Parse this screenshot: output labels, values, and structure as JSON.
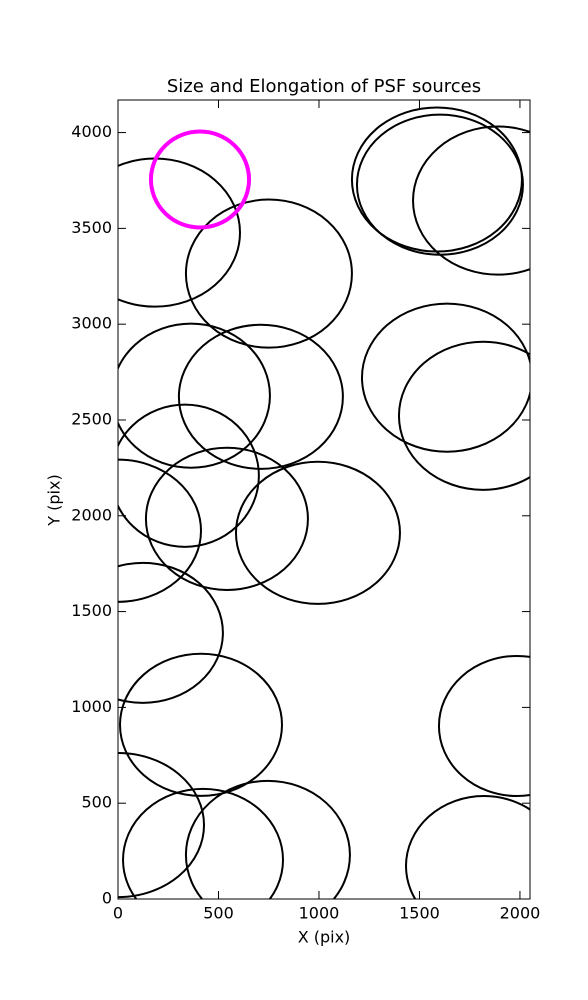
{
  "chart_data": {
    "type": "ellipse",
    "title": "Size and Elongation of PSF sources",
    "xlabel": "X (pix)",
    "ylabel": "Y (pix)",
    "xlim": [
      0,
      2050
    ],
    "ylim": [
      0,
      4170
    ],
    "xticks": [
      0,
      500,
      1000,
      1500,
      2000
    ],
    "yticks": [
      0,
      500,
      1000,
      1500,
      2000,
      2500,
      3000,
      3500,
      4000
    ],
    "ellipses": [
      {
        "x": 184,
        "y": 3478,
        "width": 846,
        "height": 773,
        "color": "#000000",
        "linewidth": 2
      },
      {
        "x": 751,
        "y": 3264,
        "width": 826,
        "height": 773,
        "color": "#000000",
        "linewidth": 2
      },
      {
        "x": 1587,
        "y": 3755,
        "width": 846,
        "height": 752,
        "color": "#000000",
        "linewidth": 2
      },
      {
        "x": 1602,
        "y": 3728,
        "width": 826,
        "height": 731,
        "color": "#000000",
        "linewidth": 2
      },
      {
        "x": 1891,
        "y": 3645,
        "width": 846,
        "height": 773,
        "color": "#000000",
        "linewidth": 2
      },
      {
        "x": 363,
        "y": 2627,
        "width": 786,
        "height": 752,
        "color": "#000000",
        "linewidth": 2
      },
      {
        "x": 711,
        "y": 2621,
        "width": 816,
        "height": 752,
        "color": "#000000",
        "linewidth": 2
      },
      {
        "x": 1637,
        "y": 2721,
        "width": 846,
        "height": 773,
        "color": "#000000",
        "linewidth": 2
      },
      {
        "x": 1816,
        "y": 2522,
        "width": 836,
        "height": 773,
        "color": "#000000",
        "linewidth": 2
      },
      {
        "x": 333,
        "y": 2209,
        "width": 736,
        "height": 742,
        "color": "#000000",
        "linewidth": 2
      },
      {
        "x": 542,
        "y": 1984,
        "width": 806,
        "height": 742,
        "color": "#000000",
        "linewidth": 2
      },
      {
        "x": 995,
        "y": 1911,
        "width": 816,
        "height": 742,
        "color": "#000000",
        "linewidth": 2
      },
      {
        "x": 0,
        "y": 1922,
        "width": 826,
        "height": 742,
        "color": "#000000",
        "linewidth": 2
      },
      {
        "x": 124,
        "y": 1389,
        "width": 796,
        "height": 731,
        "color": "#000000",
        "linewidth": 2
      },
      {
        "x": 413,
        "y": 909,
        "width": 806,
        "height": 742,
        "color": "#000000",
        "linewidth": 2
      },
      {
        "x": 1985,
        "y": 903,
        "width": 776,
        "height": 731,
        "color": "#000000",
        "linewidth": 2
      },
      {
        "x": 0,
        "y": 386,
        "width": 856,
        "height": 752,
        "color": "#000000",
        "linewidth": 2
      },
      {
        "x": 423,
        "y": 204,
        "width": 796,
        "height": 742,
        "color": "#000000",
        "linewidth": 2
      },
      {
        "x": 746,
        "y": 230,
        "width": 816,
        "height": 773,
        "color": "#000000",
        "linewidth": 2
      },
      {
        "x": 1821,
        "y": 172,
        "width": 776,
        "height": 731,
        "color": "#000000",
        "linewidth": 2
      },
      {
        "x": 408,
        "y": 3755,
        "width": 488,
        "height": 501,
        "color": "#ff00ff",
        "linewidth": 4
      }
    ]
  }
}
